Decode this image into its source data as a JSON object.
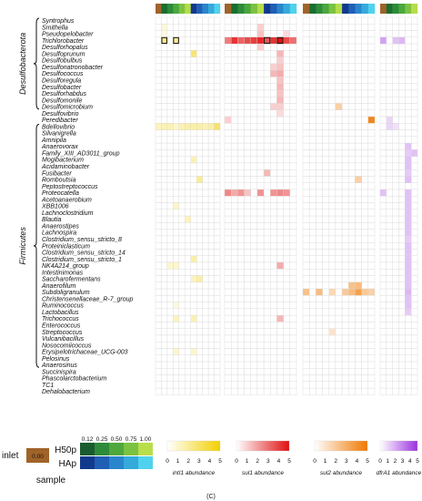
{
  "chart_data": {
    "type": "heatmap",
    "groups": [
      {
        "name": "Desulfobacterota",
        "start": 0,
        "end": 13
      },
      {
        "name": "Firmicutes",
        "start": 16,
        "end": 52
      }
    ],
    "taxa": [
      "Syntrophus",
      "Smithella",
      "Pseudopelobacter",
      "Trichlorobacter",
      "Desulforhopalus",
      "Desulfoprunum",
      "Desulfobulbus",
      "Desulfonatronobacter",
      "Desulfococcus",
      "Desulforegula",
      "Desulfobacter",
      "Desulforhabdus",
      "Desulfomonile",
      "Desulfomicrobium",
      "Desulfovibrio",
      "Peredibacter",
      "Bdellovibrio",
      "Silvanigrella",
      "Amnipila",
      "Anaerovorax",
      "Family_XIII_AD3011_group",
      "Mogibacterium",
      "Acidaminobacter",
      "Fusibacter",
      "Romboutsia",
      "Peptostreptococcus",
      "Proteocatella",
      "Acetoanaerobium",
      "XBB1006",
      "Lachnoclostridium",
      "Blautia",
      "Anaerostipes",
      "Lachnospira",
      "Clostridium_sensu_stricto_8",
      "Proteiniclasticum",
      "Clostridium_sensu_stricto_14",
      "Clostridium_sensu_stricto_1",
      "NK4A214_group",
      "Intestinimonas",
      "Saccharofermentans",
      "Anaerofilum",
      "Subdoligranulum",
      "Christensenellaceae_R-7_group",
      "Ruminococcus",
      "Lactobacillus",
      "Trichococcus",
      "Enterococcus",
      "Streptococcus",
      "Vulcanibacillus",
      "Nosocomiicoccus",
      "Erysipelotrichaceae_UCG-003",
      "Pelosinus",
      "Anaerosinus",
      "Succinispira",
      "Phascolarctobacterium",
      "TC1",
      "Dehalobacterium"
    ],
    "panels": [
      {
        "name": "intI1",
        "columns": 11,
        "color": "#f2d000"
      },
      {
        "name": "sul1",
        "columns": 11,
        "color": "#e01010"
      },
      {
        "name": "sul2",
        "columns": 11,
        "color": "#f07800"
      },
      {
        "name": "dfrA1",
        "columns": 6,
        "color": "#9b30e0"
      }
    ],
    "sample_strip": [
      "#a0632a",
      "#1a6e2e",
      "#2e8b3a",
      "#4aa83c",
      "#7cc242",
      "#b5dd4a",
      "#123a8c",
      "#1f5fb5",
      "#2a86cc",
      "#35aadb",
      "#4fd2ee"
    ],
    "cells": [
      [
        0,
        1,
        1,
        0.15
      ],
      [
        0,
        2,
        1,
        0.1
      ],
      [
        0,
        3,
        1,
        0.45
      ],
      [
        0,
        3,
        3,
        0.4
      ],
      [
        0,
        5,
        6,
        0.55
      ],
      [
        0,
        16,
        0,
        0.25
      ],
      [
        0,
        16,
        1,
        0.3
      ],
      [
        0,
        16,
        2,
        0.3
      ],
      [
        0,
        16,
        3,
        0.2
      ],
      [
        0,
        16,
        4,
        0.3
      ],
      [
        0,
        16,
        5,
        0.35
      ],
      [
        0,
        16,
        6,
        0.35
      ],
      [
        0,
        16,
        7,
        0.35
      ],
      [
        0,
        16,
        8,
        0.3
      ],
      [
        0,
        16,
        9,
        0.35
      ],
      [
        0,
        16,
        10,
        0.6
      ],
      [
        0,
        21,
        6,
        0.3
      ],
      [
        0,
        24,
        7,
        0.4
      ],
      [
        0,
        28,
        3,
        0.2
      ],
      [
        0,
        30,
        5,
        0.25
      ],
      [
        0,
        36,
        6,
        0.35
      ],
      [
        0,
        37,
        2,
        0.2
      ],
      [
        0,
        37,
        3,
        0.2
      ],
      [
        0,
        39,
        6,
        0.25
      ],
      [
        0,
        39,
        7,
        0.35
      ],
      [
        0,
        43,
        3,
        0.12
      ],
      [
        0,
        45,
        3,
        0.25
      ],
      [
        0,
        45,
        6,
        0.3
      ],
      [
        0,
        50,
        3,
        0.2
      ],
      [
        0,
        50,
        6,
        0.2
      ],
      [
        1,
        1,
        5,
        0.2
      ],
      [
        1,
        2,
        5,
        0.25
      ],
      [
        1,
        2,
        9,
        0.15
      ],
      [
        1,
        3,
        0,
        0.55
      ],
      [
        1,
        3,
        1,
        0.85
      ],
      [
        1,
        3,
        2,
        0.65
      ],
      [
        1,
        3,
        3,
        0.75
      ],
      [
        1,
        3,
        4,
        0.8
      ],
      [
        1,
        3,
        5,
        0.9
      ],
      [
        1,
        3,
        6,
        0.7
      ],
      [
        1,
        3,
        7,
        0.85
      ],
      [
        1,
        3,
        8,
        1.0
      ],
      [
        1,
        3,
        9,
        0.75
      ],
      [
        1,
        3,
        10,
        0.6
      ],
      [
        1,
        4,
        5,
        0.2
      ],
      [
        1,
        5,
        8,
        0.3
      ],
      [
        1,
        6,
        8,
        0.2
      ],
      [
        1,
        7,
        7,
        0.2
      ],
      [
        1,
        7,
        8,
        0.25
      ],
      [
        1,
        8,
        7,
        0.3
      ],
      [
        1,
        8,
        8,
        0.35
      ],
      [
        1,
        9,
        8,
        0.25
      ],
      [
        1,
        10,
        8,
        0.3
      ],
      [
        1,
        11,
        8,
        0.25
      ],
      [
        1,
        12,
        8,
        0.3
      ],
      [
        1,
        13,
        8,
        0.2
      ],
      [
        1,
        13,
        7,
        0.2
      ],
      [
        1,
        14,
        8,
        0.15
      ],
      [
        1,
        15,
        0,
        0.2
      ],
      [
        1,
        23,
        6,
        0.3
      ],
      [
        1,
        26,
        0,
        0.5
      ],
      [
        1,
        26,
        1,
        0.35
      ],
      [
        1,
        26,
        2,
        0.45
      ],
      [
        1,
        26,
        3,
        0.25
      ],
      [
        1,
        26,
        5,
        0.45
      ],
      [
        1,
        26,
        7,
        0.45
      ],
      [
        1,
        26,
        8,
        0.5
      ],
      [
        1,
        26,
        9,
        0.45
      ],
      [
        1,
        37,
        8,
        0.35
      ],
      [
        1,
        45,
        8,
        0.3
      ],
      [
        2,
        13,
        5,
        0.35
      ],
      [
        2,
        15,
        10,
        0.9
      ],
      [
        2,
        24,
        8,
        0.35
      ],
      [
        2,
        41,
        0,
        0.45
      ],
      [
        2,
        41,
        2,
        0.5
      ],
      [
        2,
        41,
        4,
        0.3
      ],
      [
        2,
        41,
        6,
        0.4
      ],
      [
        2,
        41,
        7,
        0.5
      ],
      [
        2,
        41,
        8,
        0.7
      ],
      [
        2,
        41,
        9,
        0.4
      ],
      [
        2,
        41,
        10,
        0.35
      ],
      [
        2,
        40,
        7,
        0.45
      ],
      [
        2,
        40,
        8,
        0.5
      ],
      [
        2,
        47,
        4,
        0.2
      ],
      [
        3,
        3,
        0,
        0.45
      ],
      [
        3,
        3,
        2,
        0.3
      ],
      [
        3,
        3,
        3,
        0.35
      ],
      [
        3,
        15,
        1,
        0.2
      ],
      [
        3,
        16,
        1,
        0.2
      ],
      [
        3,
        16,
        2,
        0.15
      ],
      [
        3,
        19,
        4,
        0.3
      ],
      [
        3,
        20,
        4,
        0.25
      ],
      [
        3,
        20,
        5,
        0.3
      ],
      [
        3,
        21,
        4,
        0.3
      ],
      [
        3,
        22,
        4,
        0.3
      ],
      [
        3,
        23,
        4,
        0.25
      ],
      [
        3,
        24,
        4,
        0.3
      ],
      [
        3,
        26,
        0,
        0.3
      ],
      [
        3,
        26,
        4,
        0.3
      ],
      [
        3,
        27,
        4,
        0.3
      ],
      [
        3,
        28,
        4,
        0.3
      ],
      [
        3,
        29,
        4,
        0.3
      ],
      [
        3,
        30,
        4,
        0.3
      ],
      [
        3,
        31,
        4,
        0.3
      ],
      [
        3,
        32,
        4,
        0.3
      ],
      [
        3,
        33,
        4,
        0.25
      ],
      [
        3,
        34,
        4,
        0.3
      ],
      [
        3,
        35,
        4,
        0.3
      ],
      [
        3,
        36,
        4,
        0.3
      ],
      [
        3,
        37,
        4,
        0.3
      ],
      [
        3,
        38,
        4,
        0.3
      ],
      [
        3,
        39,
        4,
        0.3
      ],
      [
        3,
        40,
        4,
        0.3
      ],
      [
        3,
        41,
        4,
        0.35
      ],
      [
        3,
        42,
        4,
        0.3
      ],
      [
        3,
        43,
        4,
        0.3
      ],
      [
        3,
        44,
        4,
        0.25
      ]
    ],
    "outlined": [
      [
        0,
        3,
        1
      ],
      [
        0,
        3,
        3
      ],
      [
        1,
        3,
        6
      ],
      [
        1,
        3,
        8
      ]
    ],
    "legend": {
      "inlet_label": "inlet",
      "inlet_value": "0.00",
      "inlet_color": "#a0632a",
      "scale_ticks": [
        "0.12",
        "0.25",
        "0.50",
        "0.75",
        "1.00"
      ],
      "h50p_label": "H50p",
      "hap_label": "HAp",
      "sample_label": "sample",
      "h50p_colors": [
        "#1a5c30",
        "#2e8b3a",
        "#4fa83c",
        "#7cc242",
        "#b8de4c"
      ],
      "hap_colors": [
        "#123a8c",
        "#1f5fb5",
        "#2a86cc",
        "#35aadb",
        "#4fd2ee"
      ],
      "abundance_ticks": [
        "0",
        "1",
        "2",
        "3",
        "4",
        "5"
      ],
      "abundance_labels": [
        "intI1 abundance",
        "sul1 abundance",
        "sul2 abundance",
        "dfrA1 abundance"
      ],
      "panel_label": "(C)"
    }
  }
}
